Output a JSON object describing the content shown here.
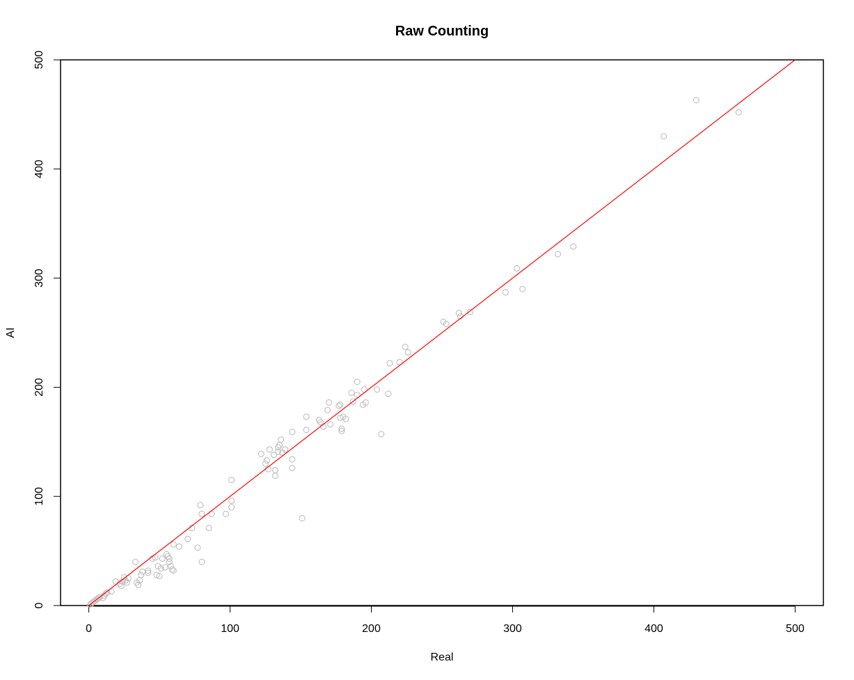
{
  "chart_data": {
    "type": "scatter",
    "title": "Raw Counting",
    "xlabel": "Real",
    "ylabel": "AI",
    "xlim": [
      -20,
      520
    ],
    "ylim": [
      0,
      500
    ],
    "x_ticks": [
      0,
      100,
      200,
      300,
      400,
      500
    ],
    "y_ticks": [
      0,
      100,
      200,
      300,
      400,
      500
    ],
    "x_tick_labels": [
      "0",
      "100",
      "200",
      "300",
      "400",
      "500"
    ],
    "y_tick_labels": [
      "0",
      "100",
      "200",
      "300",
      "400",
      "500"
    ],
    "grid": false,
    "point_color": "#bebebe",
    "line_color": "#ff0000",
    "reference_line": {
      "slope": 1,
      "intercept": 0
    },
    "points": [
      [
        1,
        1
      ],
      [
        2,
        2
      ],
      [
        3,
        3
      ],
      [
        4,
        4
      ],
      [
        5,
        5
      ],
      [
        6,
        6
      ],
      [
        7,
        7
      ],
      [
        8,
        8
      ],
      [
        10,
        7
      ],
      [
        11,
        9
      ],
      [
        12,
        11
      ],
      [
        13,
        12
      ],
      [
        16,
        13
      ],
      [
        19,
        22
      ],
      [
        22,
        20
      ],
      [
        23,
        18
      ],
      [
        24,
        22
      ],
      [
        25,
        26
      ],
      [
        26,
        23
      ],
      [
        27,
        21
      ],
      [
        28,
        25
      ],
      [
        33,
        40
      ],
      [
        34,
        21
      ],
      [
        35,
        19
      ],
      [
        36,
        23
      ],
      [
        37,
        28
      ],
      [
        38,
        31
      ],
      [
        42,
        30
      ],
      [
        42,
        32
      ],
      [
        45,
        43
      ],
      [
        47,
        44
      ],
      [
        48,
        28
      ],
      [
        49,
        36
      ],
      [
        50,
        27
      ],
      [
        51,
        34
      ],
      [
        52,
        43
      ],
      [
        54,
        35
      ],
      [
        55,
        47
      ],
      [
        56,
        45
      ],
      [
        57,
        43
      ],
      [
        57,
        40
      ],
      [
        58,
        36
      ],
      [
        59,
        33
      ],
      [
        60,
        32
      ],
      [
        60,
        56
      ],
      [
        64,
        54
      ],
      [
        70,
        61
      ],
      [
        73,
        71
      ],
      [
        77,
        53
      ],
      [
        79,
        92
      ],
      [
        80,
        84
      ],
      [
        80,
        40
      ],
      [
        85,
        71
      ],
      [
        87,
        84
      ],
      [
        97,
        84
      ],
      [
        101,
        115
      ],
      [
        101,
        96
      ],
      [
        101,
        90
      ],
      [
        122,
        139
      ],
      [
        125,
        130
      ],
      [
        126,
        133
      ],
      [
        127,
        125
      ],
      [
        128,
        143
      ],
      [
        131,
        138
      ],
      [
        132,
        124
      ],
      [
        132,
        119
      ],
      [
        134,
        141
      ],
      [
        134,
        145
      ],
      [
        135,
        147
      ],
      [
        136,
        152
      ],
      [
        137,
        140
      ],
      [
        139,
        143
      ],
      [
        144,
        134
      ],
      [
        144,
        126
      ],
      [
        144,
        159
      ],
      [
        151,
        80
      ],
      [
        154,
        161
      ],
      [
        154,
        173
      ],
      [
        163,
        170
      ],
      [
        164,
        168
      ],
      [
        166,
        164
      ],
      [
        169,
        179
      ],
      [
        170,
        186
      ],
      [
        171,
        166
      ],
      [
        177,
        183
      ],
      [
        178,
        184
      ],
      [
        178,
        172
      ],
      [
        179,
        160
      ],
      [
        179,
        162
      ],
      [
        180,
        173
      ],
      [
        182,
        171
      ],
      [
        186,
        195
      ],
      [
        187,
        187
      ],
      [
        190,
        205
      ],
      [
        190,
        193
      ],
      [
        194,
        184
      ],
      [
        195,
        198
      ],
      [
        196,
        186
      ],
      [
        204,
        198
      ],
      [
        207,
        157
      ],
      [
        212,
        194
      ],
      [
        213,
        222
      ],
      [
        220,
        223
      ],
      [
        224,
        237
      ],
      [
        226,
        232
      ],
      [
        251,
        260
      ],
      [
        253,
        258
      ],
      [
        262,
        268
      ],
      [
        263,
        265
      ],
      [
        270,
        269
      ],
      [
        295,
        287
      ],
      [
        303,
        309
      ],
      [
        307,
        290
      ],
      [
        332,
        322
      ],
      [
        343,
        329
      ],
      [
        407,
        430
      ],
      [
        430,
        463
      ],
      [
        460,
        452
      ]
    ]
  }
}
